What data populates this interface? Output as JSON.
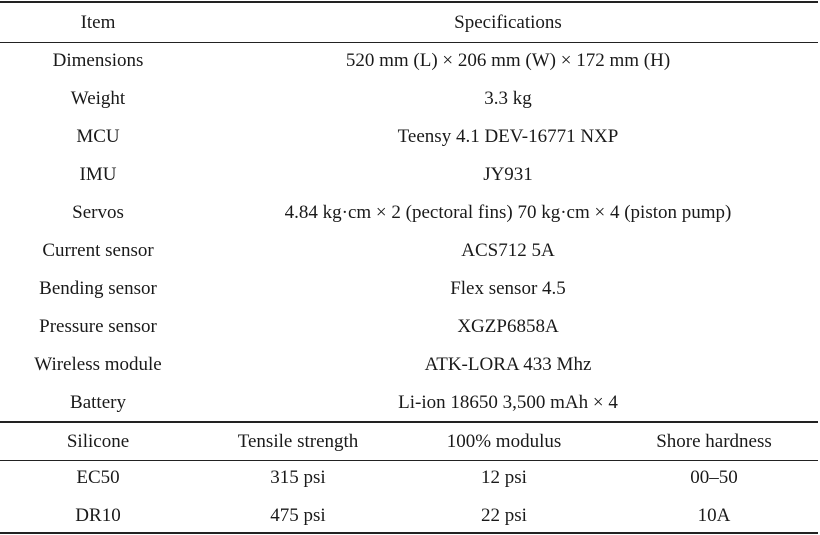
{
  "specs_table": {
    "headers": {
      "item": "Item",
      "specifications": "Specifications"
    },
    "rows": [
      {
        "item": "Dimensions",
        "spec": "520 mm (L) × 206 mm (W) × 172 mm (H)"
      },
      {
        "item": "Weight",
        "spec": "3.3 kg"
      },
      {
        "item": "MCU",
        "spec": "Teensy 4.1 DEV-16771 NXP"
      },
      {
        "item": "IMU",
        "spec": "JY931"
      },
      {
        "item": "Servos",
        "spec": "4.84 kg·cm × 2 (pectoral fins) 70 kg·cm × 4 (piston pump)"
      },
      {
        "item": "Current sensor",
        "spec": "ACS712 5A"
      },
      {
        "item": "Bending sensor",
        "spec": "Flex sensor 4.5"
      },
      {
        "item": "Pressure sensor",
        "spec": "XGZP6858A"
      },
      {
        "item": "Wireless module",
        "spec": "ATK-LORA 433 Mhz"
      },
      {
        "item": "Battery",
        "spec": "Li-ion 18650 3,500 mAh × 4"
      }
    ]
  },
  "silicone_table": {
    "headers": {
      "silicone": "Silicone",
      "tensile": "Tensile strength",
      "modulus": "100% modulus",
      "hardness": "Shore hardness"
    },
    "rows": [
      {
        "silicone": "EC50",
        "tensile": "315 psi",
        "modulus": "12 psi",
        "hardness": "00–50"
      },
      {
        "silicone": "DR10",
        "tensile": "475 psi",
        "modulus": "22 psi",
        "hardness": "10A"
      }
    ]
  }
}
